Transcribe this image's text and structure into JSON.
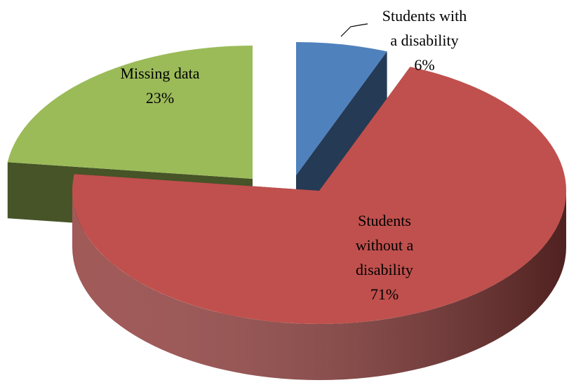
{
  "chart_data": {
    "type": "pie",
    "categories": [
      "Students with a disability",
      "Students without a disability",
      "Missing data"
    ],
    "values": [
      6,
      71,
      23
    ],
    "value_labels": [
      "6%",
      "71%",
      "23%"
    ],
    "colors": [
      "#4f81bd",
      "#c0504d",
      "#9bbb59"
    ]
  }
}
